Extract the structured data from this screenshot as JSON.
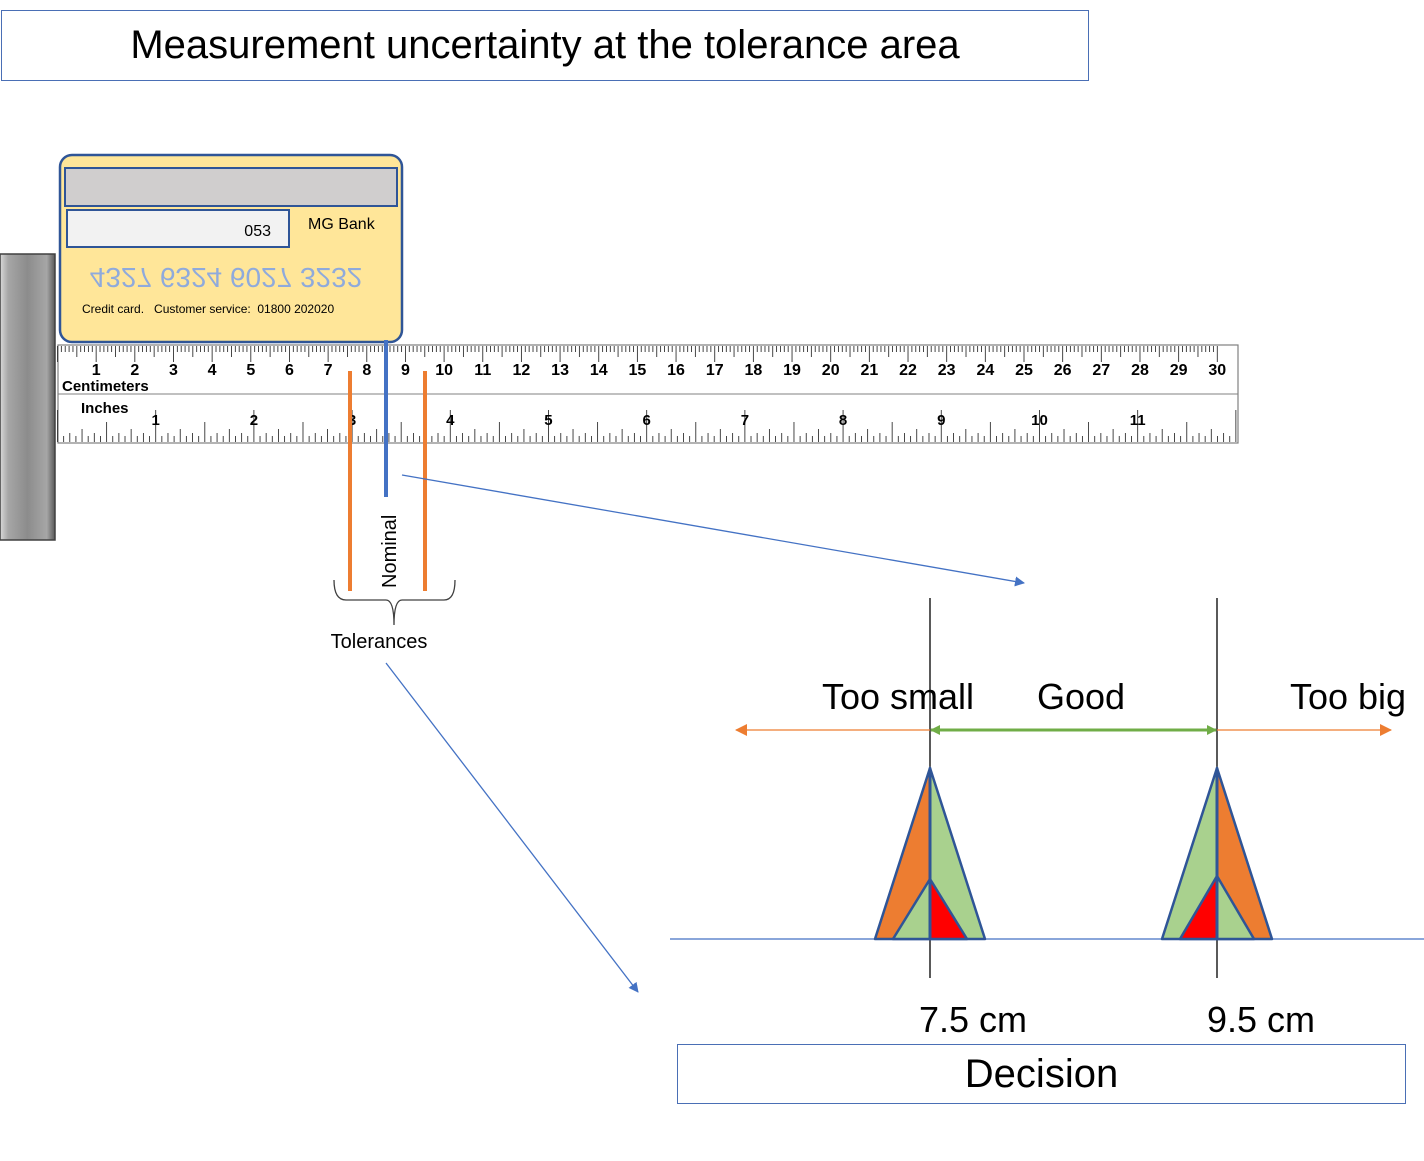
{
  "title": "Measurement uncertainty at the tolerance area",
  "card": {
    "code": "053",
    "bank": "MG Bank",
    "number": "4327 6324 6027 3232",
    "footer": "Credit card.   Customer service:  01800 202020"
  },
  "ruler": {
    "cm_label": "Centimeters",
    "in_label": "Inches",
    "cm_max": 30,
    "in_max": 11
  },
  "labels": {
    "nominal": "Nominal",
    "tolerances": "Tolerances",
    "too_small": "Too small",
    "good": "Good",
    "too_big": "Too big",
    "lower_limit": "7.5 cm",
    "upper_limit": "9.5 cm",
    "decision": "Decision"
  },
  "colors": {
    "orange": "#ed7d31",
    "green": "#a9d18e",
    "red": "#ff0000",
    "blue": "#4472c4",
    "card": "#ffe699",
    "arrow_green": "#70ad47"
  }
}
